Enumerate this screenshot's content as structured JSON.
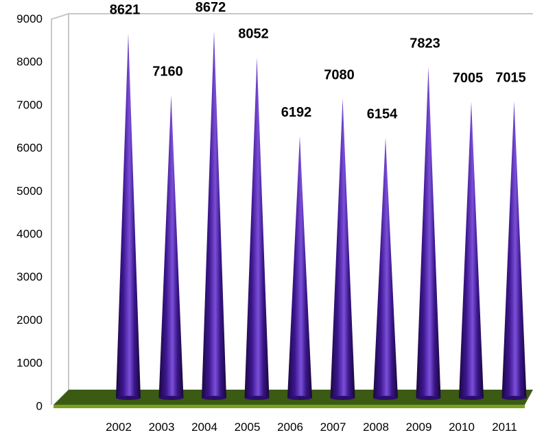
{
  "chart_data": {
    "type": "bar",
    "title": "",
    "xlabel": "",
    "ylabel": "",
    "categories": [
      "2002",
      "2003",
      "2004",
      "2005",
      "2006",
      "2007",
      "2008",
      "2009",
      "2010",
      "2011"
    ],
    "values": [
      8621,
      7160,
      8672,
      8052,
      6192,
      7080,
      6154,
      7823,
      7005,
      7015
    ],
    "ylim": [
      0,
      9000
    ],
    "yticks": [
      "0",
      "1000",
      "2000",
      "3000",
      "4000",
      "5000",
      "6000",
      "7000",
      "8000",
      "9000"
    ],
    "shape": "cone",
    "three_d": true,
    "grid": false,
    "legend": "none",
    "colors": {
      "bar_dark": "#1f0b4a",
      "bar_mid": "#4a1e9e",
      "bar_light": "#8a5ce0",
      "floor": "#3b5a14",
      "floor_edge": "#7aa020",
      "wall": "#c8c8c8"
    }
  }
}
